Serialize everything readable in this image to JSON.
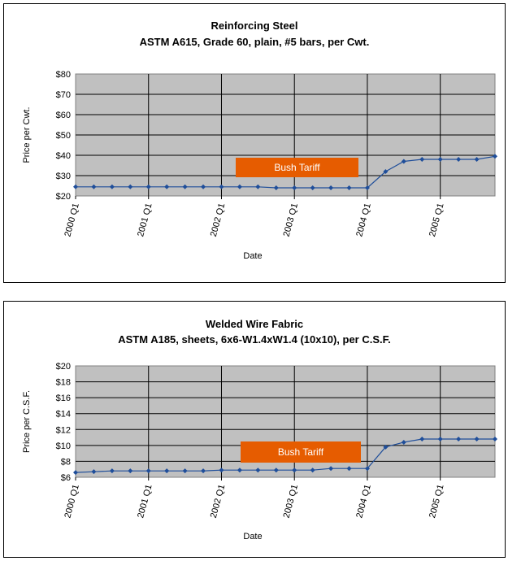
{
  "chart_data": [
    {
      "type": "line",
      "title": "Reinforcing Steel",
      "subtitle": "ASTM A615, Grade 60, plain, #5 bars, per Cwt.",
      "xlabel": "Date",
      "ylabel": "Price per Cwt.",
      "x_tick_labels": [
        "2000 Q1",
        "2001 Q1",
        "2002 Q1",
        "2003 Q1",
        "2004 Q1",
        "2005 Q1"
      ],
      "y_tick_labels": [
        "$20",
        "$30",
        "$40",
        "$50",
        "$60",
        "$70",
        "$80"
      ],
      "ylim": [
        20,
        80
      ],
      "x_quarters": [
        "2000 Q1",
        "2000 Q2",
        "2000 Q3",
        "2000 Q4",
        "2001 Q1",
        "2001 Q2",
        "2001 Q3",
        "2001 Q4",
        "2002 Q1",
        "2002 Q2",
        "2002 Q3",
        "2002 Q4",
        "2003 Q1",
        "2003 Q2",
        "2003 Q3",
        "2003 Q4",
        "2004 Q1",
        "2004 Q2",
        "2004 Q3",
        "2004 Q4",
        "2005 Q1",
        "2005 Q2",
        "2005 Q3",
        "2005 Q4"
      ],
      "values": [
        24.5,
        24.5,
        24.5,
        24.5,
        24.5,
        24.5,
        24.5,
        24.5,
        24.5,
        24.5,
        24.5,
        24,
        24,
        24,
        24,
        24,
        24,
        32,
        37,
        38,
        38,
        38,
        38,
        39.5
      ],
      "grid": true,
      "plot_background": "#c0c0c0",
      "line_color": "#1f4e9a",
      "annotation": {
        "text": "Bush Tariff",
        "color": "#e65c00",
        "text_color": "#ffffff"
      }
    },
    {
      "type": "line",
      "title": "Welded Wire Fabric",
      "subtitle": "ASTM A185, sheets, 6x6-W1.4xW1.4 (10x10), per C.S.F.",
      "xlabel": "Date",
      "ylabel": "Price per C.S.F.",
      "x_tick_labels": [
        "2000 Q1",
        "2001 Q1",
        "2002 Q1",
        "2003 Q1",
        "2004 Q1",
        "2005 Q1"
      ],
      "y_tick_labels": [
        "$6",
        "$8",
        "$10",
        "$12",
        "$14",
        "$16",
        "$18",
        "$20"
      ],
      "ylim": [
        6,
        20
      ],
      "x_quarters": [
        "2000 Q1",
        "2000 Q2",
        "2000 Q3",
        "2000 Q4",
        "2001 Q1",
        "2001 Q2",
        "2001 Q3",
        "2001 Q4",
        "2002 Q1",
        "2002 Q2",
        "2002 Q3",
        "2002 Q4",
        "2003 Q1",
        "2003 Q2",
        "2003 Q3",
        "2003 Q4",
        "2004 Q1",
        "2004 Q2",
        "2004 Q3",
        "2004 Q4",
        "2005 Q1",
        "2005 Q2",
        "2005 Q3",
        "2005 Q4"
      ],
      "values": [
        6.6,
        6.7,
        6.8,
        6.8,
        6.8,
        6.8,
        6.8,
        6.8,
        6.9,
        6.9,
        6.9,
        6.9,
        6.9,
        6.9,
        7.1,
        7.1,
        7.1,
        9.8,
        10.4,
        10.8,
        10.8,
        10.8,
        10.8,
        10.8
      ],
      "grid": true,
      "plot_background": "#c0c0c0",
      "line_color": "#1f4e9a",
      "annotation": {
        "text": "Bush Tariff",
        "color": "#e65c00",
        "text_color": "#ffffff"
      }
    }
  ]
}
